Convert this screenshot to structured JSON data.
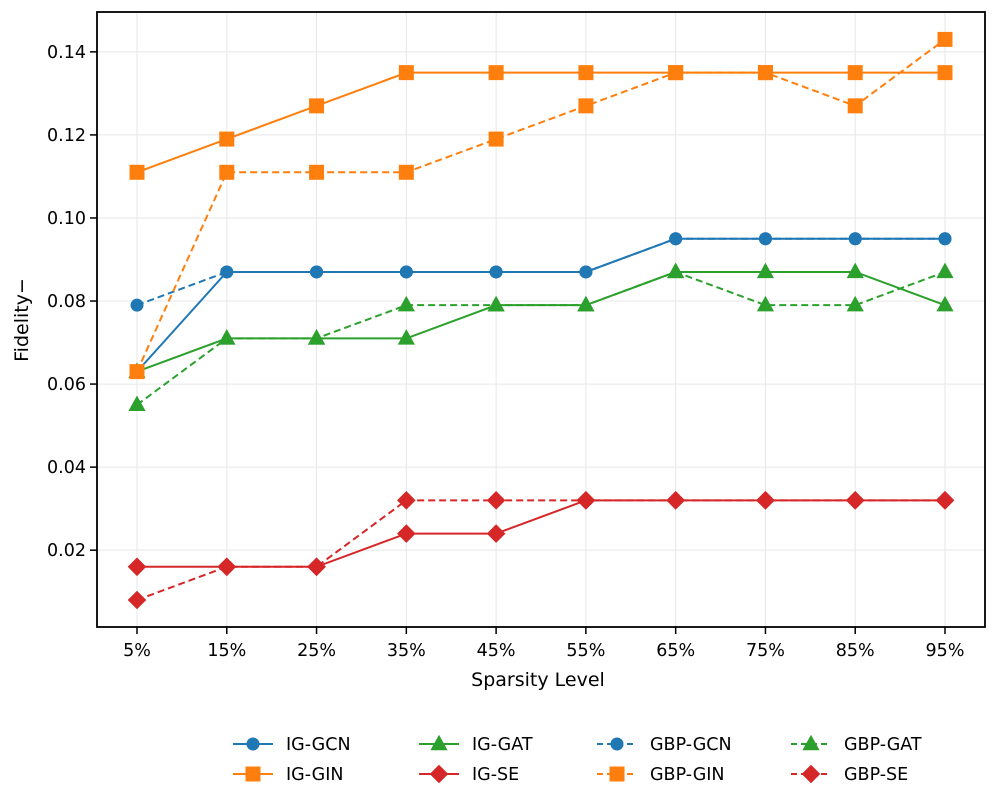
{
  "figure": {
    "background_color": "#ffffff",
    "axis_color": "#000000",
    "grid_color": "#e7e7e7",
    "text_color": "#000000"
  },
  "chart_data": {
    "type": "line",
    "title": "",
    "xlabel": "Sparsity Level",
    "ylabel": "Fidelity−",
    "categories": [
      "5%",
      "15%",
      "25%",
      "35%",
      "45%",
      "55%",
      "65%",
      "75%",
      "85%",
      "95%"
    ],
    "y_tick_labels": [
      "0.02",
      "0.04",
      "0.06",
      "0.08",
      "0.10",
      "0.12",
      "0.14"
    ],
    "y_tick_values": [
      0.02,
      0.04,
      0.06,
      0.08,
      0.1,
      0.12,
      0.14
    ],
    "ylim": [
      0.0015,
      0.1496
    ],
    "grid": true,
    "legend_position": "bottom-center",
    "legend_columns": 4,
    "series": [
      {
        "name": "IG-GCN",
        "color": "#1f77b4",
        "line_style": "solid",
        "marker": "circle",
        "values": [
          0.063,
          0.087,
          0.087,
          0.087,
          0.087,
          0.087,
          0.095,
          0.095,
          0.095,
          0.095
        ]
      },
      {
        "name": "IG-GIN",
        "color": "#ff7f0e",
        "line_style": "solid",
        "marker": "square",
        "values": [
          0.111,
          0.119,
          0.127,
          0.135,
          0.135,
          0.135,
          0.135,
          0.135,
          0.135,
          0.135
        ]
      },
      {
        "name": "IG-GAT",
        "color": "#2ca02c",
        "line_style": "solid",
        "marker": "triangle",
        "values": [
          0.063,
          0.071,
          0.071,
          0.071,
          0.079,
          0.079,
          0.087,
          0.087,
          0.087,
          0.079
        ]
      },
      {
        "name": "IG-SE",
        "color": "#d62728",
        "line_style": "solid",
        "marker": "diamond",
        "values": [
          0.016,
          0.016,
          0.016,
          0.024,
          0.024,
          0.032,
          0.032,
          0.032,
          0.032,
          0.032
        ]
      },
      {
        "name": "GBP-GCN",
        "color": "#1f77b4",
        "line_style": "dashed",
        "marker": "circle",
        "values": [
          0.079,
          0.087,
          0.087,
          0.087,
          0.087,
          0.087,
          0.095,
          0.095,
          0.095,
          0.095
        ]
      },
      {
        "name": "GBP-GIN",
        "color": "#ff7f0e",
        "line_style": "dashed",
        "marker": "square",
        "values": [
          0.063,
          0.111,
          0.111,
          0.111,
          0.119,
          0.127,
          0.135,
          0.135,
          0.127,
          0.143
        ]
      },
      {
        "name": "GBP-GAT",
        "color": "#2ca02c",
        "line_style": "dashed",
        "marker": "triangle",
        "values": [
          0.055,
          0.071,
          0.071,
          0.079,
          0.079,
          0.079,
          0.087,
          0.079,
          0.079,
          0.087
        ]
      },
      {
        "name": "GBP-SE",
        "color": "#d62728",
        "line_style": "dashed",
        "marker": "diamond",
        "values": [
          0.008,
          0.016,
          0.016,
          0.032,
          0.032,
          0.032,
          0.032,
          0.032,
          0.032,
          0.032
        ]
      }
    ]
  }
}
